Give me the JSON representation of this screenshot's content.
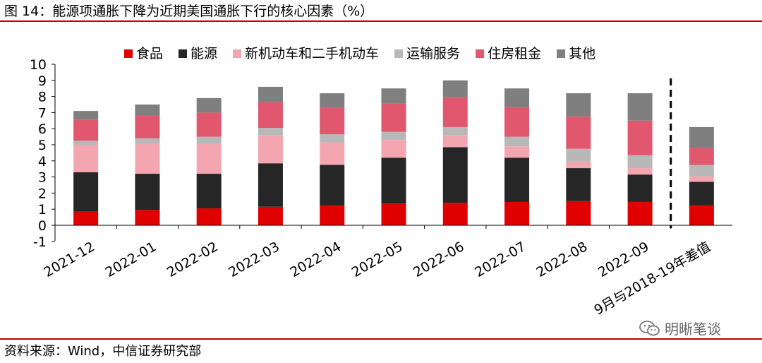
{
  "title": "图 14：能源项通胀下降为近期美国通胀下行的核心因素（%）",
  "source": "资料来源：Wind，中信证券研究部",
  "watermark": {
    "text": "明晰笔谈",
    "icon": "wechat-icon"
  },
  "chart_data": {
    "type": "bar",
    "stacked": true,
    "title": "能源项通胀下降为近期美国通胀下行的核心因素（%）",
    "xlabel": "",
    "ylabel": "",
    "ylim": [
      -1,
      10
    ],
    "yticks": [
      "-1",
      "0",
      "1",
      "2",
      "3",
      "4",
      "5",
      "6",
      "7",
      "8",
      "9",
      "10"
    ],
    "grid": false,
    "legend_position": "top",
    "categories": [
      "2021-12",
      "2022-01",
      "2022-02",
      "2022-03",
      "2022-04",
      "2022-05",
      "2022-06",
      "2022-07",
      "2022-08",
      "2022-09",
      "9月与2018-19年差值"
    ],
    "separator_after": "2022-09",
    "series": [
      {
        "name": "食品",
        "color": "#e00000",
        "values": [
          0.85,
          0.95,
          1.05,
          1.15,
          1.25,
          1.35,
          1.4,
          1.45,
          1.5,
          1.45,
          1.25
        ]
      },
      {
        "name": "能源",
        "color": "#262626",
        "values": [
          2.45,
          2.25,
          2.15,
          2.7,
          2.5,
          2.85,
          3.45,
          2.75,
          2.05,
          1.7,
          1.45
        ]
      },
      {
        "name": "新机动车和二手机动车",
        "color": "#f4a6b0",
        "values": [
          1.7,
          1.85,
          1.85,
          1.75,
          1.4,
          1.1,
          0.75,
          0.7,
          0.4,
          0.4,
          0.35
        ]
      },
      {
        "name": "运输服务",
        "color": "#b8b8b8",
        "values": [
          0.25,
          0.35,
          0.45,
          0.45,
          0.5,
          0.5,
          0.5,
          0.6,
          0.8,
          0.8,
          0.7
        ]
      },
      {
        "name": "住房租金",
        "color": "#e0576e",
        "values": [
          1.3,
          1.4,
          1.5,
          1.6,
          1.65,
          1.75,
          1.85,
          1.85,
          2.0,
          2.15,
          1.05
        ]
      },
      {
        "name": "其他",
        "color": "#7f7f7f",
        "values": [
          0.55,
          0.7,
          0.9,
          0.95,
          0.9,
          0.95,
          1.05,
          1.15,
          1.45,
          1.7,
          1.3
        ]
      }
    ]
  }
}
